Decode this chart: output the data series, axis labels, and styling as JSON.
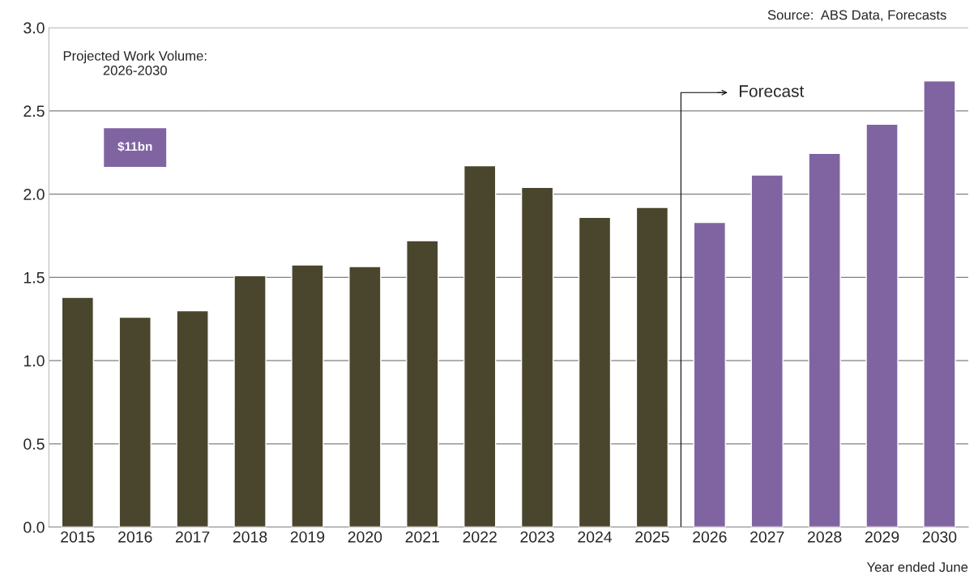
{
  "chart_data": {
    "type": "bar",
    "categories": [
      "2015",
      "2016",
      "2017",
      "2018",
      "2019",
      "2020",
      "2021",
      "2022",
      "2023",
      "2024",
      "2025",
      "2026",
      "2027",
      "2028",
      "2029",
      "2030"
    ],
    "values": [
      1.38,
      1.26,
      1.3,
      1.51,
      1.575,
      1.565,
      1.72,
      2.17,
      2.04,
      1.86,
      1.92,
      1.83,
      2.115,
      2.245,
      2.42,
      2.68
    ],
    "colors": [
      "#4a452d",
      "#4a452d",
      "#4a452d",
      "#4a452d",
      "#4a452d",
      "#4a452d",
      "#4a452d",
      "#4a452d",
      "#4a452d",
      "#4a452d",
      "#4a452d",
      "#8064a2",
      "#8064a2",
      "#8064a2",
      "#8064a2",
      "#8064a2"
    ],
    "xlabel": "Year ended June",
    "ylim": [
      0,
      3.0
    ],
    "yticks": [
      {
        "value": 0,
        "label": "0.0"
      },
      {
        "value": 0.5,
        "label": "0.5"
      },
      {
        "value": 1.0,
        "label": "1.0"
      },
      {
        "value": 1.5,
        "label": "1.5"
      },
      {
        "value": 2.0,
        "label": "2.0"
      },
      {
        "value": 2.5,
        "label": "2.5"
      },
      {
        "value": 3.0,
        "label": "3.0"
      }
    ],
    "grid": "y",
    "annotations": [
      "Source:  ABS Data, Forecasts",
      "Projected Work Volume:\n2026-2030",
      "$11bn",
      "Forecast"
    ]
  }
}
